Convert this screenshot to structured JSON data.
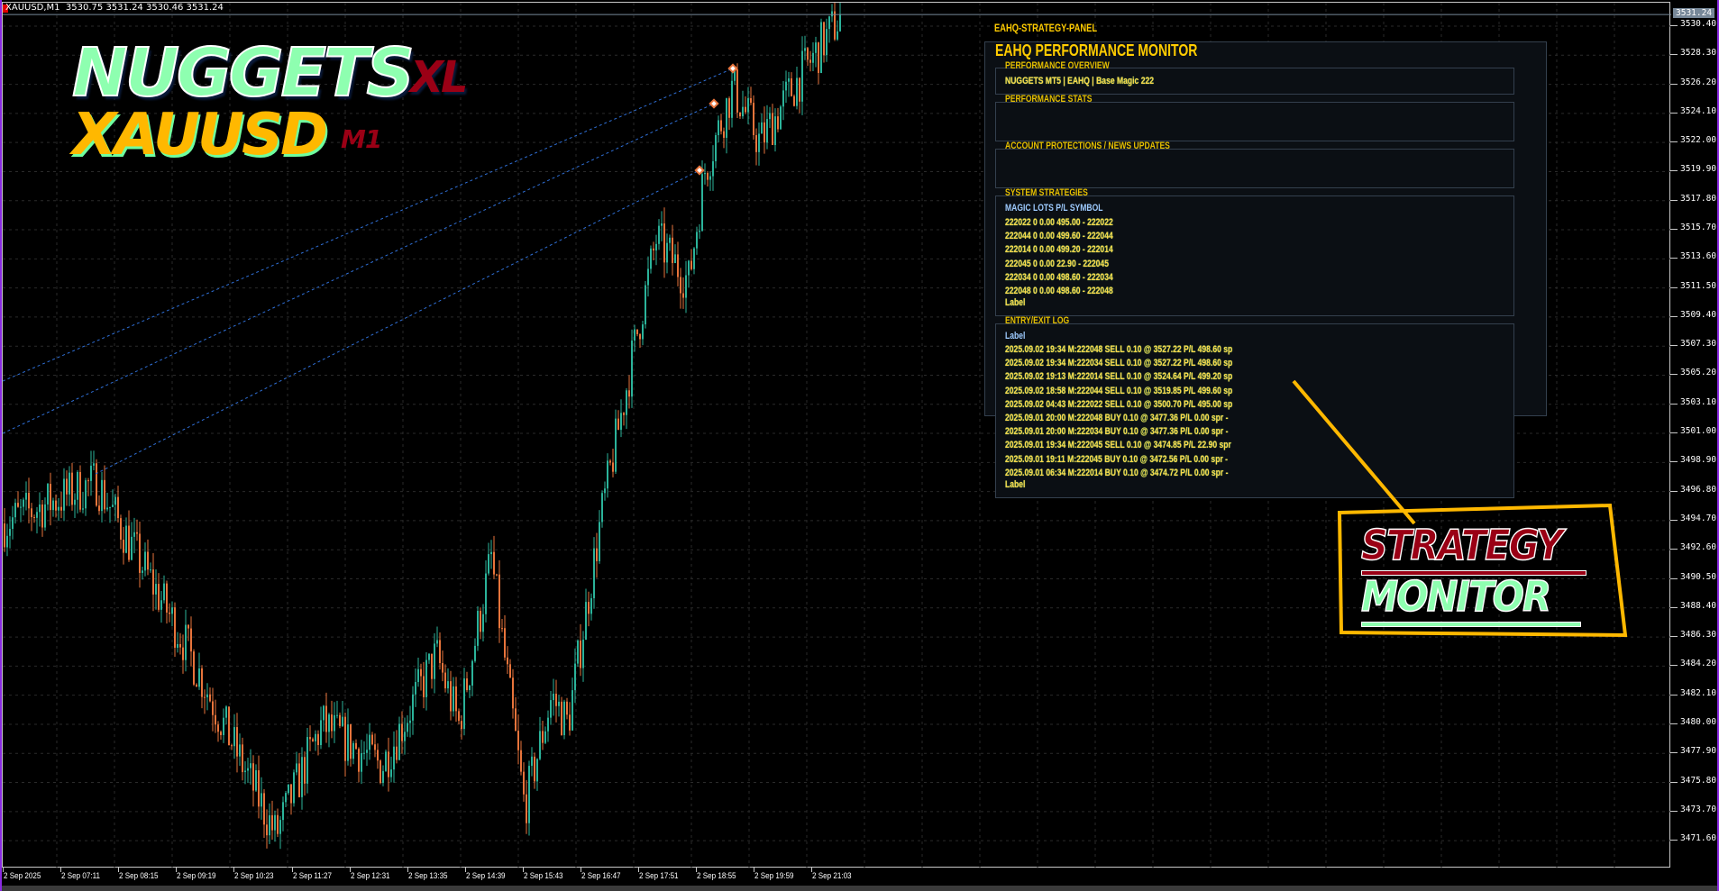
{
  "chart_header": {
    "symbol_timeframe": "XAUUSD,M1",
    "ohlc": "3530.75 3531.24 3530.46 3531.24"
  },
  "logo": {
    "line1": "NUGGETS",
    "line1_suffix": "XL",
    "line2": "XAUUSD",
    "line2_suffix": "M1"
  },
  "price_axis": {
    "current_price": "3531.24",
    "labels": [
      "3530.40",
      "3528.30",
      "3526.20",
      "3524.10",
      "3522.00",
      "3519.90",
      "3517.80",
      "3515.70",
      "3513.60",
      "3511.50",
      "3509.40",
      "3507.30",
      "3505.20",
      "3503.10",
      "3501.00",
      "3498.90",
      "3496.80",
      "3494.70",
      "3492.60",
      "3490.50",
      "3488.40",
      "3486.30",
      "3484.20",
      "3482.10",
      "3480.00",
      "3477.90",
      "3475.80",
      "3473.70",
      "3471.60"
    ]
  },
  "time_axis": {
    "labels": [
      "2 Sep 2025",
      "2 Sep 07:11",
      "2 Sep 08:15",
      "2 Sep 09:19",
      "2 Sep 10:23",
      "2 Sep 11:27",
      "2 Sep 12:31",
      "2 Sep 13:35",
      "2 Sep 14:39",
      "2 Sep 15:43",
      "2 Sep 16:47",
      "2 Sep 17:51",
      "2 Sep 18:55",
      "2 Sep 19:59",
      "2 Sep 21:03"
    ]
  },
  "price_path": [
    3494.5,
    3497.5,
    3486,
    3472,
    3480,
    3477,
    3485,
    3480,
    3492,
    3474,
    3482,
    3480,
    3495,
    3507,
    3515,
    3512,
    3520,
    3526,
    3522,
    3526,
    3531.24
  ],
  "colors": {
    "bull": "#2bb39a",
    "bear": "#e8743b",
    "accent": "#ffcc00",
    "grid": "#2a2a2a",
    "trade_line": "#2f6fd6"
  },
  "panel": {
    "window_title": "EAHQ-STRATEGY-PANEL",
    "heading": "EAHQ PERFORMANCE MONITOR",
    "overview": {
      "title": "PERFORMANCE OVERVIEW",
      "text": "NUGGETS MT5 | EAHQ | Base Magic 222"
    },
    "stats": {
      "title": "PERFORMANCE STATS"
    },
    "protections": {
      "title": "ACCOUNT PROTECTIONS / NEWS UPDATES"
    },
    "strategies": {
      "title": "SYSTEM STRATEGIES",
      "header": "MAGIC  LOTS  P/L  SYMBOL",
      "rows": [
        "222022    0  0.00    495.00 -      222022",
        "222044    0  0.00    499.60 -      222044",
        "222014    0  0.00    499.20 -      222014",
        "222045    0  0.00     22.90 -      222045",
        "222034    0  0.00    498.60 -      222034",
        "222048    0  0.00    498.60 -      222048"
      ],
      "footer": "Label"
    },
    "log": {
      "title": "ENTRY/EXIT LOG",
      "header": "Label",
      "rows": [
        "2025.09.02 19:34  M:222048  SELL 0.10 @ 3527.22  P/L 498.60  sp",
        "2025.09.02 19:34  M:222034  SELL 0.10 @ 3527.22  P/L 498.60  sp",
        "2025.09.02 19:13  M:222014  SELL 0.10 @ 3524.64  P/L 499.20  sp",
        "2025.09.02 18:58  M:222044  SELL 0.10 @ 3519.85  P/L 499.60  sp",
        "2025.09.02 04:43  M:222022  SELL 0.10 @ 3500.70  P/L 495.00  sp",
        "2025.09.01 20:00  M:222048  BUY 0.10 @ 3477.36  P/L 0.00  spr -",
        "2025.09.01 20:00  M:222034  BUY 0.10 @ 3477.36  P/L 0.00  spr -",
        "2025.09.01 19:34  M:222045  SELL 0.10 @ 3474.85  P/L 22.90  spr",
        "2025.09.01 19:11  M:222045  BUY 0.10 @ 3472.56  P/L 0.00  spr -",
        "2025.09.01 06:34  M:222014  BUY 0.10 @ 3474.72  P/L 0.00  spr -"
      ],
      "footer": "Label"
    }
  },
  "callout": {
    "line1": "STRATEGY",
    "line2": "MONITOR"
  }
}
